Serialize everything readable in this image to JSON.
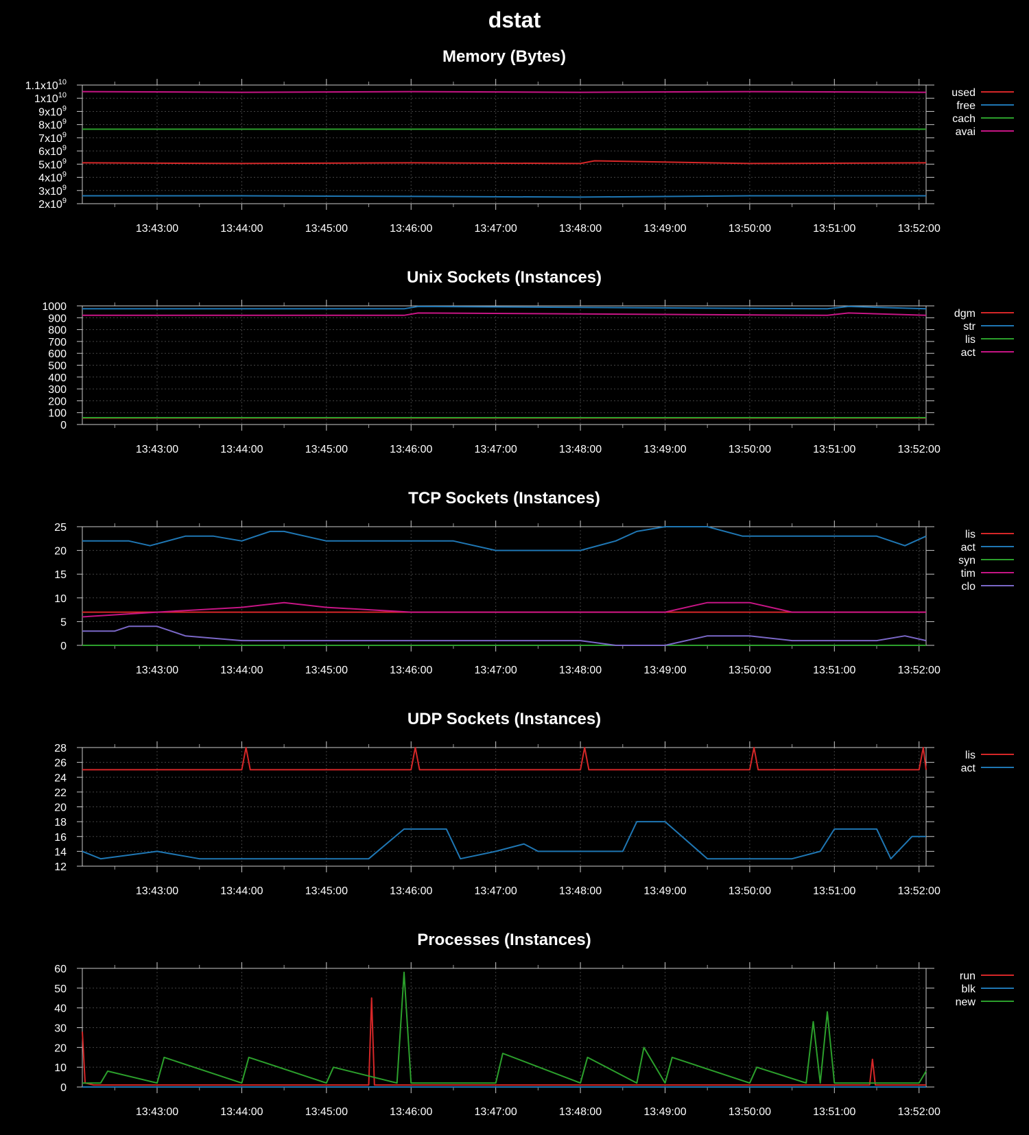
{
  "page": {
    "title": "dstat"
  },
  "time_ticks": [
    "13:43:00",
    "13:44:00",
    "13:45:00",
    "13:46:00",
    "13:47:00",
    "13:48:00",
    "13:49:00",
    "13:50:00",
    "13:51:00",
    "13:52:00"
  ],
  "chart_data": [
    {
      "type": "line",
      "title": "Memory (Bytes)",
      "ylim": [
        2000000000,
        11000000000
      ],
      "y_ticks": [
        {
          "v": 2000000000,
          "base": "2x10",
          "exp": "9"
        },
        {
          "v": 3000000000,
          "base": "3x10",
          "exp": "9"
        },
        {
          "v": 4000000000,
          "base": "4x10",
          "exp": "9"
        },
        {
          "v": 5000000000,
          "base": "5x10",
          "exp": "9"
        },
        {
          "v": 6000000000,
          "base": "6x10",
          "exp": "9"
        },
        {
          "v": 7000000000,
          "base": "7x10",
          "exp": "9"
        },
        {
          "v": 8000000000,
          "base": "8x10",
          "exp": "9"
        },
        {
          "v": 9000000000,
          "base": "9x10",
          "exp": "9"
        },
        {
          "v": 10000000000,
          "base": "1x10",
          "exp": "10"
        },
        {
          "v": 11000000000,
          "base": "1.1x10",
          "exp": "10"
        }
      ],
      "grid": true,
      "legend": "right",
      "series": [
        {
          "name": "used",
          "color": "#d62728",
          "x": [
            "13:42:07",
            "13:44:00",
            "13:46:00",
            "13:48:00",
            "13:48:10",
            "13:50:00",
            "13:52:05"
          ],
          "y": [
            5100000000,
            5050000000,
            5100000000,
            5050000000,
            5250000000,
            5050000000,
            5100000000
          ]
        },
        {
          "name": "free",
          "color": "#1f77b4",
          "x": [
            "13:42:07",
            "13:44:00",
            "13:46:00",
            "13:48:00",
            "13:50:00",
            "13:52:05"
          ],
          "y": [
            2600000000,
            2600000000,
            2550000000,
            2500000000,
            2600000000,
            2600000000
          ]
        },
        {
          "name": "cach",
          "color": "#2ca02c",
          "x": [
            "13:42:07",
            "13:52:05"
          ],
          "y": [
            7650000000,
            7650000000
          ]
        },
        {
          "name": "avai",
          "color": "#c71585",
          "x": [
            "13:42:07",
            "13:44:00",
            "13:46:00",
            "13:48:00",
            "13:50:00",
            "13:52:05"
          ],
          "y": [
            10500000000,
            10450000000,
            10500000000,
            10450000000,
            10500000000,
            10450000000
          ]
        }
      ]
    },
    {
      "type": "line",
      "title": "Unix Sockets (Instances)",
      "ylim": [
        0,
        1000
      ],
      "y_ticks": [
        {
          "v": 0,
          "base": "0"
        },
        {
          "v": 100,
          "base": "100"
        },
        {
          "v": 200,
          "base": "200"
        },
        {
          "v": 300,
          "base": "300"
        },
        {
          "v": 400,
          "base": "400"
        },
        {
          "v": 500,
          "base": "500"
        },
        {
          "v": 600,
          "base": "600"
        },
        {
          "v": 700,
          "base": "700"
        },
        {
          "v": 800,
          "base": "800"
        },
        {
          "v": 900,
          "base": "900"
        },
        {
          "v": 1000,
          "base": "1000"
        }
      ],
      "grid": true,
      "legend": "right",
      "series": [
        {
          "name": "dgm",
          "color": "#d62728",
          "x": [
            "13:42:07",
            "13:52:05"
          ],
          "y": [
            55,
            55
          ]
        },
        {
          "name": "str",
          "color": "#1f77b4",
          "x": [
            "13:42:07",
            "13:45:55",
            "13:46:05",
            "13:50:55",
            "13:51:10",
            "13:52:05"
          ],
          "y": [
            975,
            975,
            995,
            975,
            995,
            975
          ]
        },
        {
          "name": "lis",
          "color": "#2ca02c",
          "x": [
            "13:42:07",
            "13:52:05"
          ],
          "y": [
            58,
            58
          ]
        },
        {
          "name": "act",
          "color": "#c71585",
          "x": [
            "13:42:07",
            "13:45:55",
            "13:46:05",
            "13:50:55",
            "13:51:10",
            "13:52:05"
          ],
          "y": [
            920,
            920,
            940,
            920,
            940,
            920
          ]
        }
      ]
    },
    {
      "type": "line",
      "title": "TCP Sockets (Instances)",
      "ylim": [
        0,
        25
      ],
      "y_ticks": [
        {
          "v": 0,
          "base": "0"
        },
        {
          "v": 5,
          "base": "5"
        },
        {
          "v": 10,
          "base": "10"
        },
        {
          "v": 15,
          "base": "15"
        },
        {
          "v": 20,
          "base": "20"
        },
        {
          "v": 25,
          "base": "25"
        }
      ],
      "grid": true,
      "legend": "right",
      "series": [
        {
          "name": "lis",
          "color": "#d62728",
          "x": [
            "13:42:07",
            "13:52:05"
          ],
          "y": [
            7,
            7
          ]
        },
        {
          "name": "act",
          "color": "#1f77b4",
          "x": [
            "13:42:07",
            "13:42:40",
            "13:42:55",
            "13:43:20",
            "13:43:40",
            "13:44:00",
            "13:44:20",
            "13:44:30",
            "13:45:00",
            "13:45:30",
            "13:46:00",
            "13:46:30",
            "13:47:00",
            "13:47:30",
            "13:48:00",
            "13:48:25",
            "13:48:40",
            "13:49:00",
            "13:49:30",
            "13:49:55",
            "13:50:30",
            "13:51:00",
            "13:51:30",
            "13:51:50",
            "13:52:05"
          ],
          "y": [
            22,
            22,
            21,
            23,
            23,
            22,
            24,
            24,
            22,
            22,
            22,
            22,
            20,
            20,
            20,
            22,
            24,
            25,
            25,
            23,
            23,
            23,
            23,
            21,
            23
          ]
        },
        {
          "name": "syn",
          "color": "#2ca02c",
          "x": [
            "13:42:07",
            "13:52:05"
          ],
          "y": [
            0,
            0
          ]
        },
        {
          "name": "tim",
          "color": "#c71585",
          "x": [
            "13:42:07",
            "13:43:00",
            "13:44:00",
            "13:44:30",
            "13:45:00",
            "13:46:00",
            "13:47:00",
            "13:48:00",
            "13:49:00",
            "13:49:30",
            "13:50:00",
            "13:50:30",
            "13:51:00",
            "13:52:05"
          ],
          "y": [
            6,
            7,
            8,
            9,
            8,
            7,
            7,
            7,
            7,
            9,
            9,
            7,
            7,
            7
          ]
        },
        {
          "name": "clo",
          "color": "#7b68c8",
          "x": [
            "13:42:07",
            "13:42:30",
            "13:42:40",
            "13:43:00",
            "13:43:20",
            "13:44:00",
            "13:45:00",
            "13:46:00",
            "13:47:00",
            "13:48:00",
            "13:48:25",
            "13:49:00",
            "13:49:30",
            "13:50:00",
            "13:50:30",
            "13:51:00",
            "13:51:30",
            "13:51:50",
            "13:52:05"
          ],
          "y": [
            3,
            3,
            4,
            4,
            2,
            1,
            1,
            1,
            1,
            1,
            0,
            0,
            2,
            2,
            1,
            1,
            1,
            2,
            1
          ]
        }
      ]
    },
    {
      "type": "line",
      "title": "UDP Sockets (Instances)",
      "ylim": [
        12,
        28
      ],
      "y_ticks": [
        {
          "v": 12,
          "base": "12"
        },
        {
          "v": 14,
          "base": "14"
        },
        {
          "v": 16,
          "base": "16"
        },
        {
          "v": 18,
          "base": "18"
        },
        {
          "v": 20,
          "base": "20"
        },
        {
          "v": 22,
          "base": "22"
        },
        {
          "v": 24,
          "base": "24"
        },
        {
          "v": 26,
          "base": "26"
        },
        {
          "v": 28,
          "base": "28"
        }
      ],
      "grid": true,
      "legend": "right",
      "series": [
        {
          "name": "lis",
          "color": "#d62728",
          "x": [
            "13:42:07",
            "13:44:00",
            "13:44:03",
            "13:44:06",
            "13:46:00",
            "13:46:03",
            "13:46:06",
            "13:48:00",
            "13:48:03",
            "13:48:06",
            "13:50:00",
            "13:50:03",
            "13:50:06",
            "13:52:00",
            "13:52:03",
            "13:52:05"
          ],
          "y": [
            25,
            25,
            28,
            25,
            25,
            28,
            25,
            25,
            28,
            25,
            25,
            28,
            25,
            25,
            28,
            25
          ]
        },
        {
          "name": "act",
          "color": "#1f77b4",
          "x": [
            "13:42:07",
            "13:42:20",
            "13:43:00",
            "13:43:30",
            "13:45:00",
            "13:45:30",
            "13:45:55",
            "13:46:05",
            "13:46:25",
            "13:46:35",
            "13:47:00",
            "13:47:20",
            "13:47:30",
            "13:48:00",
            "13:48:30",
            "13:48:40",
            "13:49:00",
            "13:49:30",
            "13:50:00",
            "13:50:30",
            "13:50:50",
            "13:51:00",
            "13:51:30",
            "13:51:40",
            "13:51:55",
            "13:52:05"
          ],
          "y": [
            14,
            13,
            14,
            13,
            13,
            13,
            17,
            17,
            17,
            13,
            14,
            15,
            14,
            14,
            14,
            18,
            18,
            13,
            13,
            13,
            14,
            17,
            17,
            13,
            16,
            16
          ]
        }
      ]
    },
    {
      "type": "line",
      "title": "Processes (Instances)",
      "ylim": [
        0,
        60
      ],
      "y_ticks": [
        {
          "v": 0,
          "base": "0"
        },
        {
          "v": 10,
          "base": "10"
        },
        {
          "v": 20,
          "base": "20"
        },
        {
          "v": 30,
          "base": "30"
        },
        {
          "v": 40,
          "base": "40"
        },
        {
          "v": 50,
          "base": "50"
        },
        {
          "v": 60,
          "base": "60"
        }
      ],
      "grid": true,
      "legend": "right",
      "series": [
        {
          "name": "run",
          "color": "#d62728",
          "x": [
            "13:42:07",
            "13:42:09",
            "13:42:15",
            "13:45:30",
            "13:45:32",
            "13:45:34",
            "13:51:25",
            "13:51:27",
            "13:51:29",
            "13:52:05"
          ],
          "y": [
            28,
            2,
            1,
            1,
            45,
            1,
            1,
            14,
            1,
            1
          ]
        },
        {
          "name": "blk",
          "color": "#1f77b4",
          "x": [
            "13:42:07",
            "13:52:05"
          ],
          "y": [
            0,
            0
          ]
        },
        {
          "name": "new",
          "color": "#2ca02c",
          "x": [
            "13:42:07",
            "13:42:20",
            "13:42:25",
            "13:43:00",
            "13:43:05",
            "13:44:00",
            "13:44:05",
            "13:45:00",
            "13:45:05",
            "13:45:50",
            "13:45:55",
            "13:46:00",
            "13:47:00",
            "13:47:05",
            "13:48:00",
            "13:48:05",
            "13:48:40",
            "13:48:45",
            "13:49:00",
            "13:49:05",
            "13:50:00",
            "13:50:05",
            "13:50:40",
            "13:50:45",
            "13:50:50",
            "13:50:55",
            "13:51:00",
            "13:52:00",
            "13:52:05"
          ],
          "y": [
            2,
            2,
            8,
            2,
            15,
            2,
            15,
            2,
            10,
            2,
            58,
            2,
            2,
            17,
            2,
            15,
            2,
            20,
            2,
            15,
            2,
            10,
            2,
            33,
            2,
            38,
            2,
            2,
            8
          ]
        }
      ]
    }
  ]
}
